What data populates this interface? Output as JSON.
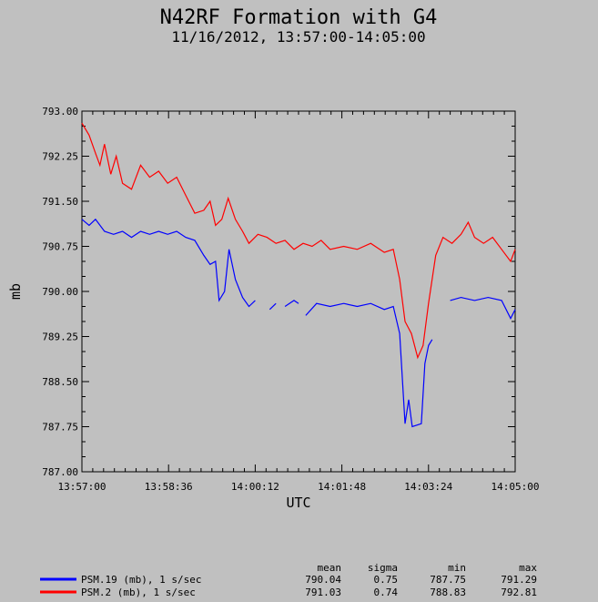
{
  "chart_data": {
    "type": "line",
    "title": "N42RF Formation with G4",
    "subtitle": "11/16/2012, 13:57:00-14:05:00",
    "xlabel": "UTC",
    "ylabel": "mb",
    "x_range_seconds_label": [
      "13:57:00",
      "14:05:00"
    ],
    "xticks": [
      "13:57:00",
      "13:58:36",
      "14:00:12",
      "14:01:48",
      "14:03:24",
      "14:05:00"
    ],
    "yticks": [
      "787.00",
      "787.75",
      "788.50",
      "789.25",
      "790.00",
      "790.75",
      "791.50",
      "792.25",
      "793.00"
    ],
    "ylim": [
      787.0,
      793.0
    ],
    "grid": false,
    "legend_position": "bottom",
    "stats_headers": [
      "mean",
      "sigma",
      "min",
      "max"
    ],
    "series": [
      {
        "name": "PSM.19 (mb), 1 s/sec",
        "color": "#0000ff",
        "stats": [
          "790.04",
          "0.75",
          "787.75",
          "791.29"
        ],
        "points": [
          [
            "13:57:00",
            791.2
          ],
          [
            "13:57:08",
            791.1
          ],
          [
            "13:57:15",
            791.2
          ],
          [
            "13:57:25",
            791.0
          ],
          [
            "13:57:35",
            790.95
          ],
          [
            "13:57:45",
            791.0
          ],
          [
            "13:57:55",
            790.9
          ],
          [
            "13:58:05",
            791.0
          ],
          [
            "13:58:15",
            790.95
          ],
          [
            "13:58:25",
            791.0
          ],
          [
            "13:58:35",
            790.95
          ],
          [
            "13:58:45",
            791.0
          ],
          [
            "13:58:55",
            790.9
          ],
          [
            "13:59:05",
            790.85
          ],
          [
            "13:59:15",
            790.6
          ],
          [
            "13:59:22",
            790.45
          ],
          [
            "13:59:28",
            790.5
          ],
          [
            "13:59:32",
            789.85
          ],
          [
            "13:59:38",
            790.0
          ],
          [
            "13:59:43",
            790.7
          ],
          [
            "13:59:50",
            790.2
          ],
          [
            "13:59:58",
            789.9
          ],
          [
            "14:00:05",
            789.75
          ],
          [
            "14:00:12",
            789.85
          ],
          [
            "14:00:25",
            null
          ],
          [
            "14:00:28",
            789.7
          ],
          [
            "14:00:35",
            789.8
          ],
          [
            "14:00:40",
            null
          ],
          [
            "14:00:45",
            789.75
          ],
          [
            "14:00:55",
            789.85
          ],
          [
            "14:01:00",
            789.8
          ],
          [
            "14:01:05",
            null
          ],
          [
            "14:01:08",
            789.6
          ],
          [
            "14:01:20",
            789.8
          ],
          [
            "14:01:35",
            789.75
          ],
          [
            "14:01:50",
            789.8
          ],
          [
            "14:02:05",
            789.75
          ],
          [
            "14:02:20",
            789.8
          ],
          [
            "14:02:35",
            789.7
          ],
          [
            "14:02:45",
            789.75
          ],
          [
            "14:02:52",
            789.3
          ],
          [
            "14:02:58",
            787.8
          ],
          [
            "14:03:02",
            788.2
          ],
          [
            "14:03:06",
            787.75
          ],
          [
            "14:03:16",
            787.8
          ],
          [
            "14:03:20",
            788.8
          ],
          [
            "14:03:24",
            789.1
          ],
          [
            "14:03:28",
            789.2
          ],
          [
            "14:03:32",
            null
          ],
          [
            "14:03:48",
            789.85
          ],
          [
            "14:04:00",
            789.9
          ],
          [
            "14:04:15",
            789.85
          ],
          [
            "14:04:30",
            789.9
          ],
          [
            "14:04:45",
            789.85
          ],
          [
            "14:04:55",
            789.55
          ],
          [
            "14:05:00",
            789.7
          ]
        ]
      },
      {
        "name": "PSM.2 (mb), 1 s/sec",
        "color": "#ff0000",
        "stats": [
          "791.03",
          "0.74",
          "788.83",
          "792.81"
        ],
        "points": [
          [
            "13:57:00",
            792.8
          ],
          [
            "13:57:08",
            792.6
          ],
          [
            "13:57:15",
            792.3
          ],
          [
            "13:57:20",
            792.1
          ],
          [
            "13:57:25",
            792.45
          ],
          [
            "13:57:32",
            791.95
          ],
          [
            "13:57:38",
            792.25
          ],
          [
            "13:57:45",
            791.8
          ],
          [
            "13:57:55",
            791.7
          ],
          [
            "13:58:05",
            792.1
          ],
          [
            "13:58:15",
            791.9
          ],
          [
            "13:58:25",
            792.0
          ],
          [
            "13:58:35",
            791.8
          ],
          [
            "13:58:45",
            791.9
          ],
          [
            "13:58:55",
            791.6
          ],
          [
            "13:59:05",
            791.3
          ],
          [
            "13:59:15",
            791.35
          ],
          [
            "13:59:22",
            791.5
          ],
          [
            "13:59:28",
            791.1
          ],
          [
            "13:59:35",
            791.2
          ],
          [
            "13:59:42",
            791.55
          ],
          [
            "13:59:50",
            791.2
          ],
          [
            "13:59:58",
            791.0
          ],
          [
            "14:00:05",
            790.8
          ],
          [
            "14:00:15",
            790.95
          ],
          [
            "14:00:25",
            790.9
          ],
          [
            "14:00:35",
            790.8
          ],
          [
            "14:00:45",
            790.85
          ],
          [
            "14:00:55",
            790.7
          ],
          [
            "14:01:05",
            790.8
          ],
          [
            "14:01:15",
            790.75
          ],
          [
            "14:01:25",
            790.85
          ],
          [
            "14:01:35",
            790.7
          ],
          [
            "14:01:50",
            790.75
          ],
          [
            "14:02:05",
            790.7
          ],
          [
            "14:02:20",
            790.8
          ],
          [
            "14:02:35",
            790.65
          ],
          [
            "14:02:45",
            790.7
          ],
          [
            "14:02:52",
            790.2
          ],
          [
            "14:02:58",
            789.5
          ],
          [
            "14:03:05",
            789.3
          ],
          [
            "14:03:12",
            788.9
          ],
          [
            "14:03:18",
            789.1
          ],
          [
            "14:03:24",
            789.8
          ],
          [
            "14:03:32",
            790.6
          ],
          [
            "14:03:40",
            790.9
          ],
          [
            "14:03:50",
            790.8
          ],
          [
            "14:04:00",
            790.95
          ],
          [
            "14:04:08",
            791.15
          ],
          [
            "14:04:15",
            790.9
          ],
          [
            "14:04:25",
            790.8
          ],
          [
            "14:04:35",
            790.9
          ],
          [
            "14:04:45",
            790.7
          ],
          [
            "14:04:55",
            790.5
          ],
          [
            "14:05:00",
            790.7
          ]
        ]
      }
    ]
  }
}
